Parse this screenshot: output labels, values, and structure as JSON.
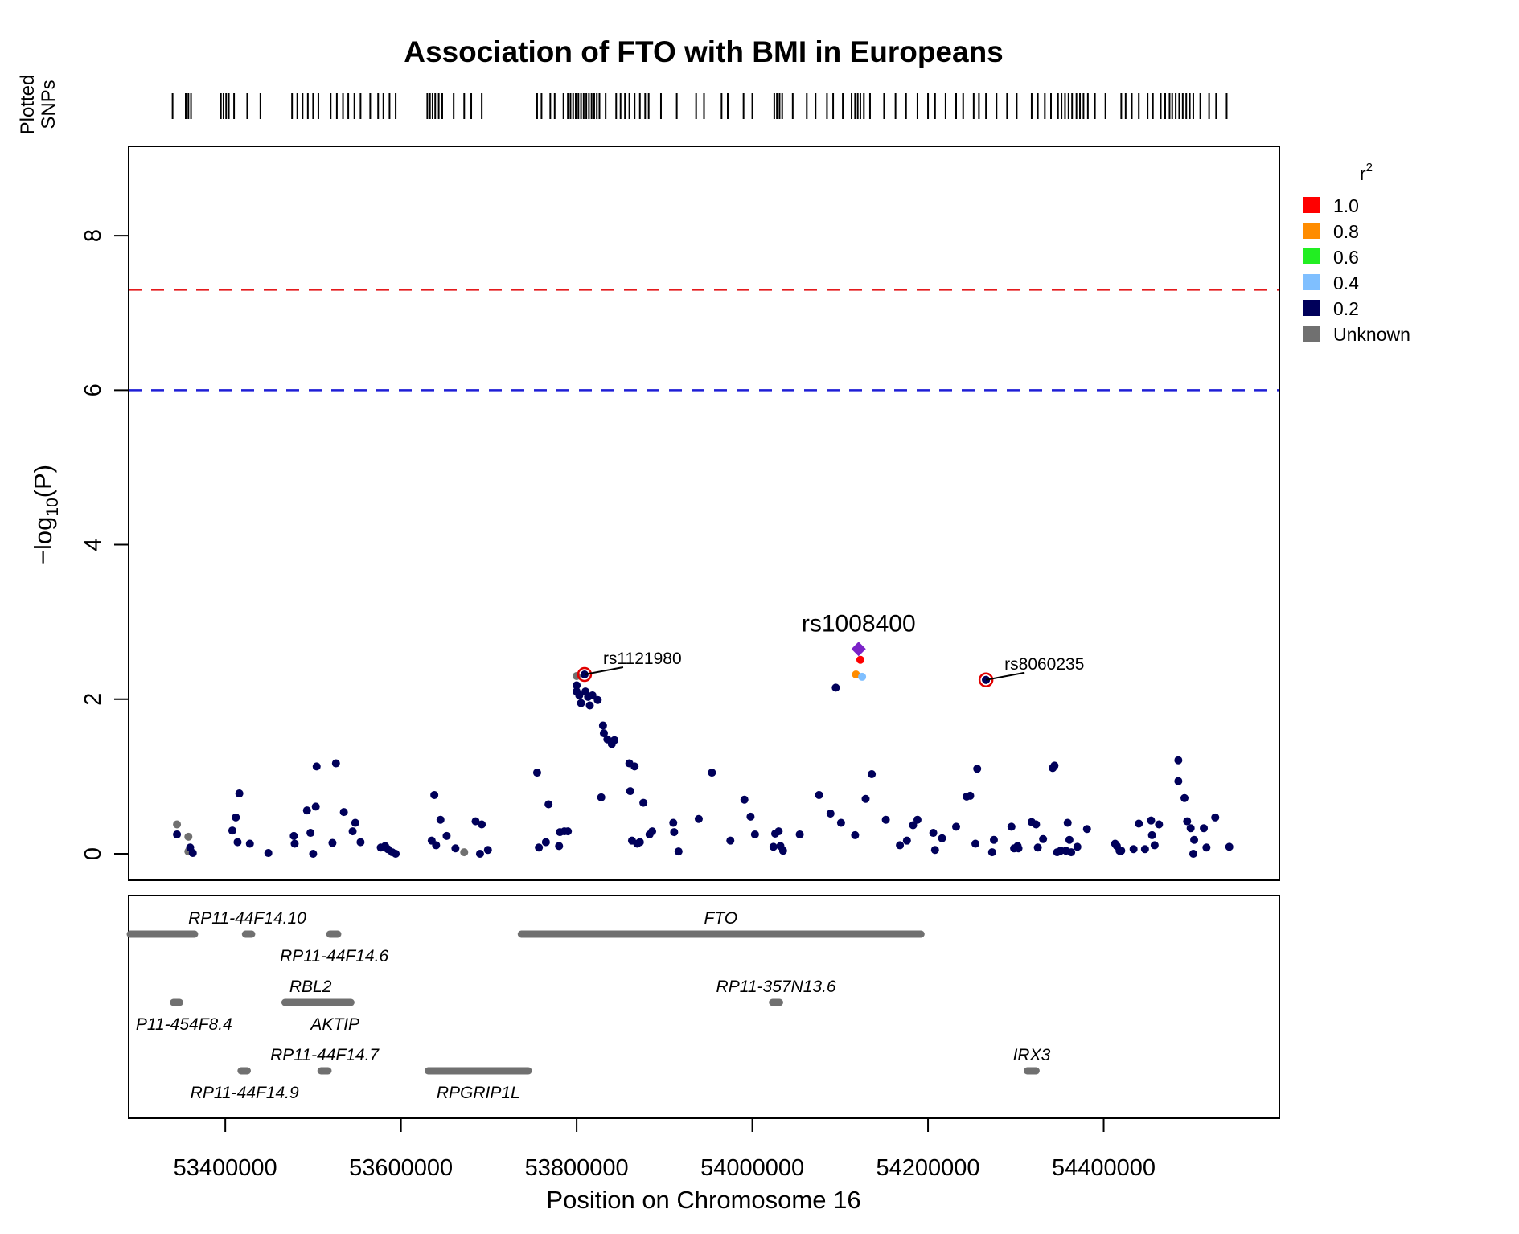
{
  "chart_data": {
    "type": "scatter",
    "title": "Association of FTO with BMI in Europeans",
    "xlabel": "Position on Chromosome 16",
    "ylabel_main": "−log",
    "ylabel_sub": "10",
    "ylabel_tail": "(P)",
    "xlim": [
      53290000,
      54600000
    ],
    "ylim": [
      0,
      9
    ],
    "x_ticks": [
      53400000,
      53600000,
      53800000,
      54000000,
      54200000,
      54400000
    ],
    "x_tick_labels": [
      "53400000",
      "53600000",
      "53800000",
      "54000000",
      "54200000",
      "54400000"
    ],
    "y_ticks": [
      0,
      2,
      4,
      6,
      8
    ],
    "y_tick_labels": [
      "0",
      "2",
      "4",
      "6",
      "8"
    ],
    "rug_label_line1": "Plotted",
    "rug_label_line2": "SNPs",
    "threshold_lines": [
      {
        "y": 7.3,
        "color": "#e41a1c"
      },
      {
        "y": 6.0,
        "color": "#1f1fd6"
      }
    ],
    "legend": {
      "title": "r",
      "title_sup": "2",
      "placement": "right",
      "items": [
        {
          "label": "1.0",
          "color": "#ff0000"
        },
        {
          "label": "0.8",
          "color": "#ff8c00"
        },
        {
          "label": "0.6",
          "color": "#22ee22"
        },
        {
          "label": "0.4",
          "color": "#7fbfff"
        },
        {
          "label": "0.2",
          "color": "#00005a"
        },
        {
          "label": "Unknown",
          "color": "#707070"
        }
      ]
    },
    "lead_snp": {
      "name": "rs1008400",
      "x": 54121000,
      "y": 2.65,
      "color": "#7b22c8"
    },
    "highlighted_snps": [
      {
        "name": "rs1121980",
        "x": 53809000,
        "y": 2.32
      },
      {
        "name": "rs8060235",
        "x": 54266000,
        "y": 2.25
      }
    ],
    "series": [
      {
        "r2": "1.0",
        "color": "#ff0000",
        "points": [
          [
            54123000,
            2.51
          ]
        ]
      },
      {
        "r2": "0.8",
        "color": "#ff8c00",
        "points": [
          [
            54118000,
            2.32
          ]
        ]
      },
      {
        "r2": "0.4",
        "color": "#7fbfff",
        "points": [
          [
            54125000,
            2.29
          ]
        ]
      },
      {
        "r2": "Unknown",
        "color": "#707070",
        "points": [
          [
            53345000,
            0.38
          ],
          [
            53358000,
            0.22
          ],
          [
            53358000,
            0.03
          ],
          [
            53672000,
            0.02
          ],
          [
            53800000,
            2.3
          ]
        ]
      },
      {
        "r2": "0.2",
        "color": "#00005a",
        "points": [
          [
            53345000,
            0.25
          ],
          [
            53360000,
            0.08
          ],
          [
            53363000,
            0.01
          ],
          [
            53408000,
            0.3
          ],
          [
            53412000,
            0.47
          ],
          [
            53414000,
            0.15
          ],
          [
            53416000,
            0.78
          ],
          [
            53428000,
            0.13
          ],
          [
            53449000,
            0.01
          ],
          [
            53478000,
            0.23
          ],
          [
            53479000,
            0.13
          ],
          [
            53493000,
            0.56
          ],
          [
            53497000,
            0.27
          ],
          [
            53500000,
            0.0
          ],
          [
            53503000,
            0.61
          ],
          [
            53504000,
            1.13
          ],
          [
            53522000,
            0.14
          ],
          [
            53526000,
            1.17
          ],
          [
            53535000,
            0.54
          ],
          [
            53545000,
            0.29
          ],
          [
            53548000,
            0.4
          ],
          [
            53554000,
            0.15
          ],
          [
            53577000,
            0.08
          ],
          [
            53582000,
            0.1
          ],
          [
            53585000,
            0.06
          ],
          [
            53590000,
            0.02
          ],
          [
            53594000,
            0.0
          ],
          [
            53635000,
            0.17
          ],
          [
            53638000,
            0.76
          ],
          [
            53640000,
            0.11
          ],
          [
            53645000,
            0.44
          ],
          [
            53652000,
            0.23
          ],
          [
            53662000,
            0.07
          ],
          [
            53685000,
            0.42
          ],
          [
            53690000,
            0.0
          ],
          [
            53692000,
            0.38
          ],
          [
            53699000,
            0.05
          ],
          [
            53755000,
            1.05
          ],
          [
            53757000,
            0.08
          ],
          [
            53765000,
            0.15
          ],
          [
            53768000,
            0.64
          ],
          [
            53780000,
            0.1
          ],
          [
            53781000,
            0.28
          ],
          [
            53786000,
            0.29
          ],
          [
            53790000,
            0.29
          ],
          [
            53800000,
            2.18
          ],
          [
            53800000,
            2.1
          ],
          [
            53803000,
            2.05
          ],
          [
            53805000,
            1.95
          ],
          [
            53810000,
            2.1
          ],
          [
            53813000,
            2.03
          ],
          [
            53815000,
            1.92
          ],
          [
            53818000,
            2.05
          ],
          [
            53824000,
            1.99
          ],
          [
            53828000,
            0.73
          ],
          [
            53830000,
            1.66
          ],
          [
            53831000,
            1.56
          ],
          [
            53835000,
            1.48
          ],
          [
            53840000,
            1.42
          ],
          [
            53843000,
            1.47
          ],
          [
            53860000,
            1.17
          ],
          [
            53861000,
            0.81
          ],
          [
            53863000,
            0.17
          ],
          [
            53866000,
            1.13
          ],
          [
            53869000,
            0.13
          ],
          [
            53872000,
            0.15
          ],
          [
            53876000,
            0.66
          ],
          [
            53883000,
            0.25
          ],
          [
            53886000,
            0.29
          ],
          [
            53910000,
            0.4
          ],
          [
            53911000,
            0.28
          ],
          [
            53916000,
            0.03
          ],
          [
            53939000,
            0.45
          ],
          [
            53954000,
            1.05
          ],
          [
            53975000,
            0.17
          ],
          [
            53991000,
            0.7
          ],
          [
            53998000,
            0.48
          ],
          [
            54003000,
            0.25
          ],
          [
            54024000,
            0.09
          ],
          [
            54026000,
            0.26
          ],
          [
            54030000,
            0.29
          ],
          [
            54032000,
            0.1
          ],
          [
            54035000,
            0.04
          ],
          [
            54054000,
            0.25
          ],
          [
            54076000,
            0.76
          ],
          [
            54089000,
            0.52
          ],
          [
            54095000,
            2.15
          ],
          [
            54101000,
            0.4
          ],
          [
            54117000,
            0.24
          ],
          [
            54129000,
            0.71
          ],
          [
            54136000,
            1.03
          ],
          [
            54152000,
            0.44
          ],
          [
            54168000,
            0.11
          ],
          [
            54176000,
            0.17
          ],
          [
            54183000,
            0.37
          ],
          [
            54188000,
            0.44
          ],
          [
            54206000,
            0.27
          ],
          [
            54208000,
            0.05
          ],
          [
            54216000,
            0.2
          ],
          [
            54232000,
            0.35
          ],
          [
            54244000,
            0.74
          ],
          [
            54248000,
            0.75
          ],
          [
            54254000,
            0.13
          ],
          [
            54256000,
            1.1
          ],
          [
            54266000,
            2.25
          ],
          [
            54273000,
            0.02
          ],
          [
            54275000,
            0.18
          ],
          [
            54295000,
            0.35
          ],
          [
            54298000,
            0.07
          ],
          [
            54302000,
            0.1
          ],
          [
            54303000,
            0.07
          ],
          [
            54318000,
            0.41
          ],
          [
            54323000,
            0.38
          ],
          [
            54325000,
            0.08
          ],
          [
            54331000,
            0.19
          ],
          [
            54342000,
            1.11
          ],
          [
            54344000,
            1.14
          ],
          [
            54347000,
            0.02
          ],
          [
            54351000,
            0.04
          ],
          [
            54357000,
            0.04
          ],
          [
            54359000,
            0.4
          ],
          [
            54361000,
            0.18
          ],
          [
            54363000,
            0.02
          ],
          [
            54370000,
            0.09
          ],
          [
            54381000,
            0.32
          ],
          [
            54413000,
            0.13
          ],
          [
            54415000,
            0.1
          ],
          [
            54418000,
            0.04
          ],
          [
            54420000,
            0.04
          ],
          [
            54434000,
            0.06
          ],
          [
            54440000,
            0.39
          ],
          [
            54447000,
            0.06
          ],
          [
            54454000,
            0.43
          ],
          [
            54455000,
            0.24
          ],
          [
            54458000,
            0.11
          ],
          [
            54463000,
            0.38
          ],
          [
            54485000,
            1.21
          ],
          [
            54485000,
            0.94
          ],
          [
            54492000,
            0.72
          ],
          [
            54495000,
            0.42
          ],
          [
            54499000,
            0.33
          ],
          [
            54502000,
            0.0
          ],
          [
            54503000,
            0.18
          ],
          [
            54514000,
            0.33
          ],
          [
            54517000,
            0.08
          ],
          [
            54527000,
            0.47
          ],
          [
            54543000,
            0.09
          ]
        ]
      }
    ],
    "rug_positions": [
      53340000,
      53355000,
      53358000,
      53361000,
      53395000,
      53398000,
      53401000,
      53404000,
      53410000,
      53425000,
      53440000,
      53476000,
      53482000,
      53488000,
      53494000,
      53500000,
      53506000,
      53520000,
      53527000,
      53534000,
      53540000,
      53547000,
      53554000,
      53565000,
      53574000,
      53580000,
      53587000,
      53594000,
      53630000,
      53633000,
      53636000,
      53639000,
      53643000,
      53647000,
      53660000,
      53672000,
      53680000,
      53692000,
      53755000,
      53760000,
      53770000,
      53775000,
      53785000,
      53790000,
      53793000,
      53796000,
      53799000,
      53802000,
      53805000,
      53808000,
      53811000,
      53814000,
      53817000,
      53820000,
      53823000,
      53826000,
      53833000,
      53845000,
      53850000,
      53855000,
      53860000,
      53866000,
      53872000,
      53878000,
      53882000,
      53896000,
      53914000,
      53936000,
      53945000,
      53965000,
      53972000,
      53990000,
      54000000,
      54025000,
      54028000,
      54031000,
      54034000,
      54046000,
      54062000,
      54072000,
      54085000,
      54092000,
      54103000,
      54113000,
      54117000,
      54120000,
      54123000,
      54127000,
      54134000,
      54150000,
      54163000,
      54175000,
      54188000,
      54200000,
      54208000,
      54220000,
      54232000,
      54240000,
      54252000,
      54258000,
      54266000,
      54278000,
      54290000,
      54301000,
      54318000,
      54325000,
      54333000,
      54340000,
      54348000,
      54352000,
      54356000,
      54360000,
      54364000,
      54369000,
      54373000,
      54377000,
      54382000,
      54390000,
      54402000,
      54420000,
      54425000,
      54432000,
      54440000,
      54450000,
      54456000,
      54465000,
      54470000,
      54475000,
      54478000,
      54482000,
      54486000,
      54490000,
      54494000,
      54498000,
      54502000,
      54510000,
      54520000,
      54528000,
      54540000
    ],
    "genes": [
      {
        "name": "RP11-44F14.10",
        "start": 53290000,
        "end": 53365000,
        "row": 0,
        "label_pos": "above",
        "label_x": 53425000
      },
      {
        "name": "",
        "start": 53423000,
        "end": 53430000,
        "row": 0,
        "label_pos": "none"
      },
      {
        "name": "RP11-44F14.6",
        "start": 53519000,
        "end": 53528000,
        "row": 0,
        "label_pos": "below",
        "label_x": 53524000
      },
      {
        "name": "FTO",
        "start": 53737000,
        "end": 54192000,
        "row": 0,
        "label_pos": "above",
        "label_x": 53964000
      },
      {
        "name": "P11-454F8.4",
        "start": 53341000,
        "end": 53348000,
        "row": 1,
        "label_pos": "below",
        "label_x": 53353000
      },
      {
        "name": "RBL2",
        "start": 53468000,
        "end": 53525000,
        "row": 1,
        "label_pos": "above",
        "label_x": 53497000
      },
      {
        "name": "AKTIP",
        "start": 53510000,
        "end": 53543000,
        "row": 1,
        "label_pos": "below",
        "label_x": 53525000
      },
      {
        "name": "RP11-357N13.6",
        "start": 54023000,
        "end": 54031000,
        "row": 1,
        "label_pos": "above",
        "label_x": 54027000
      },
      {
        "name": "RP11-44F14.7",
        "start": 53509000,
        "end": 53517000,
        "row": 2,
        "label_pos": "above",
        "label_x": 53513000
      },
      {
        "name": "RP11-44F14.9",
        "start": 53418000,
        "end": 53425000,
        "row": 2,
        "label_pos": "below",
        "label_x": 53422000
      },
      {
        "name": "RPGRIP1L",
        "start": 53631000,
        "end": 53745000,
        "row": 2,
        "label_pos": "below",
        "label_x": 53688000
      },
      {
        "name": "IRX3",
        "start": 54313000,
        "end": 54323000,
        "row": 2,
        "label_pos": "above",
        "label_x": 54318000
      }
    ]
  }
}
